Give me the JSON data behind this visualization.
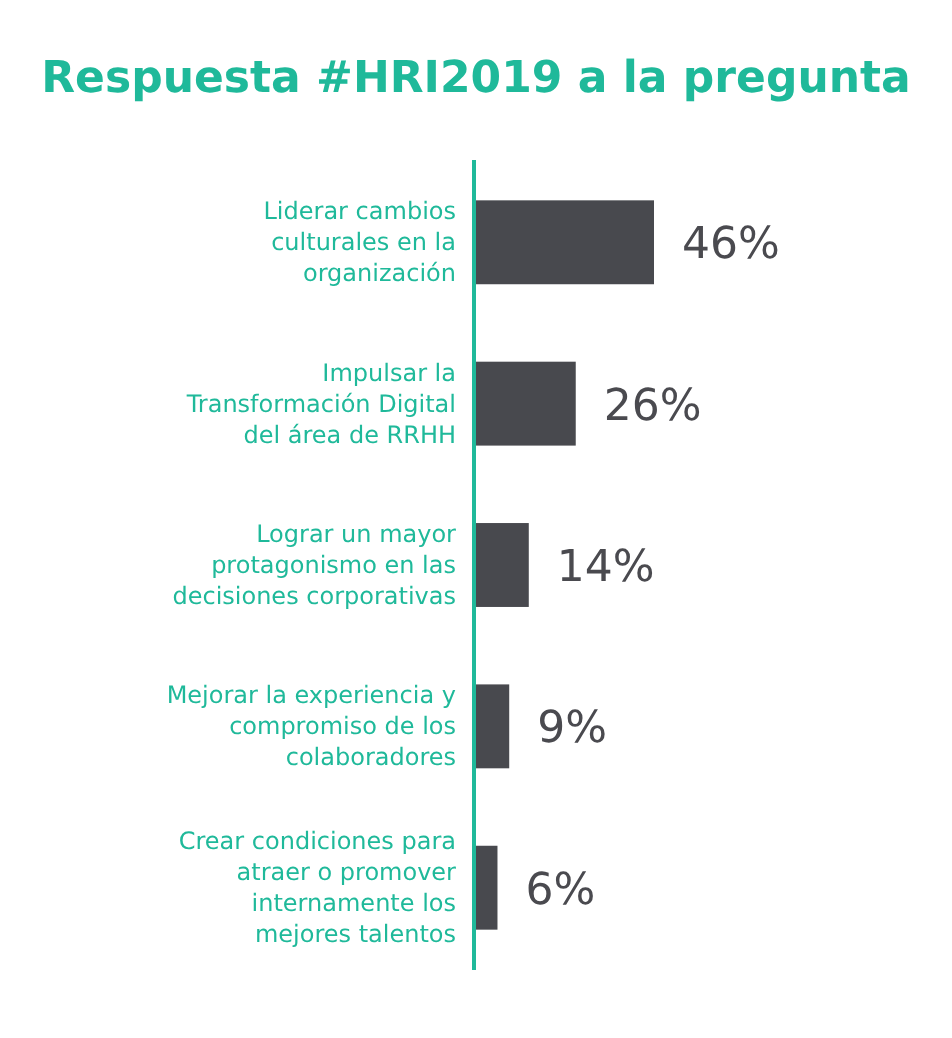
{
  "chart_data": {
    "type": "bar",
    "orientation": "horizontal",
    "title": "Respuesta #HRI2019 a la pregunta",
    "categories": [
      "Liderar cambios culturales  en la organización",
      "Impulsar la Transformación Digital del área de RRHH",
      "Lograr un mayor protagonismo en las decisiones corporativas",
      "Mejorar la experiencia y compromiso de los colaboradores",
      "Crear condiciones para atraer o promover internamente los mejores talentos"
    ],
    "values": [
      46,
      26,
      14,
      9,
      6
    ],
    "value_labels": [
      "46%",
      "26%",
      "14%",
      "9%",
      "6%"
    ],
    "color": "#48494e"
  }
}
